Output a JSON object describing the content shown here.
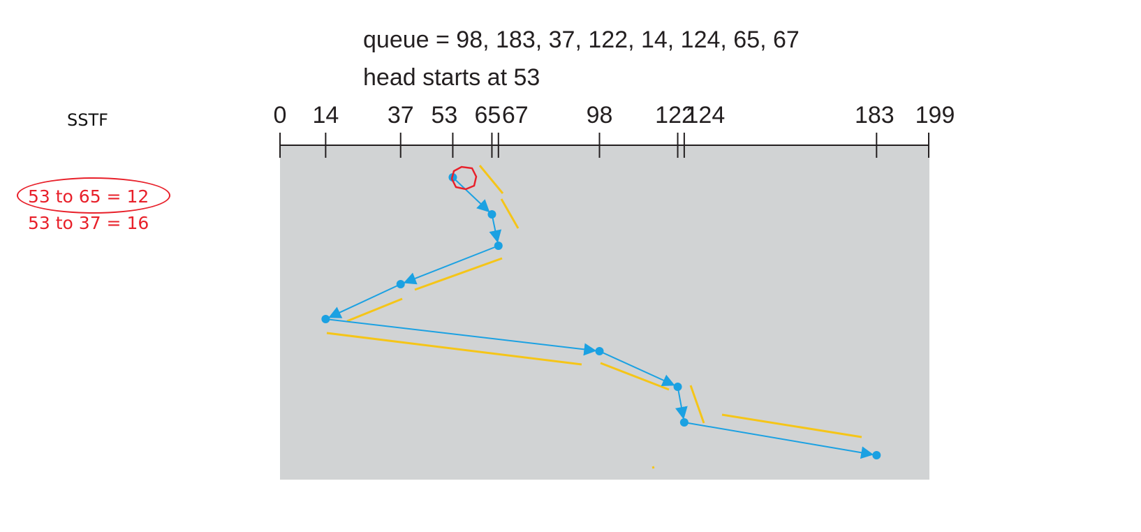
{
  "queue_text": "queue = 98, 183, 37, 122, 14, 124, 65, 67",
  "head_text": "head starts at 53",
  "algorithm": "SSTF",
  "notes": [
    "53 to 65 = 12",
    "53 to 37 = 16"
  ],
  "axis": {
    "min": 0,
    "max": 199,
    "ticks": [
      0,
      14,
      37,
      53,
      65,
      67,
      98,
      122,
      124,
      183,
      199
    ],
    "tick_labels": [
      "0",
      "14",
      "37",
      "53",
      "65",
      "67",
      "98",
      "122",
      "124",
      "183",
      "199"
    ]
  },
  "service_order": [
    53,
    65,
    67,
    37,
    14,
    98,
    122,
    124,
    183
  ],
  "colors": {
    "path": "#1ba1e2",
    "highlight_lines": "#f5c518",
    "annotation": "#e8202a",
    "panel": "#d1d3d4",
    "text": "#231f20"
  }
}
